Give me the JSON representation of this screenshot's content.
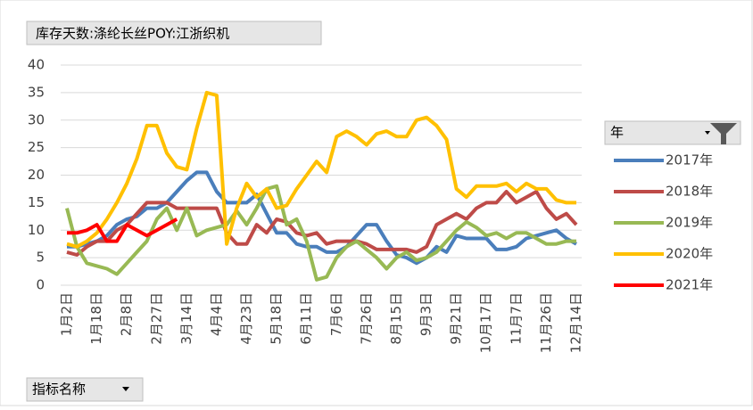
{
  "chart_data": {
    "type": "line",
    "title": "库存天数:涤纶长丝POY:江浙织机",
    "categories": [
      "1月2日",
      null,
      null,
      "1月18日",
      null,
      null,
      "2月8日",
      null,
      null,
      "2月27日",
      null,
      null,
      "3月14日",
      null,
      null,
      "4月4日",
      null,
      null,
      "4月23日",
      null,
      null,
      "5月18日",
      null,
      null,
      "6月11日",
      null,
      null,
      "7月6日",
      null,
      null,
      "7月26日",
      null,
      null,
      "8月15日",
      null,
      null,
      "9月3日",
      null,
      null,
      "9月21日",
      null,
      null,
      "10月17日",
      null,
      null,
      "11月7日",
      null,
      null,
      "11月26日",
      null,
      null,
      "12月14日"
    ],
    "series": [
      {
        "name": "2017年",
        "color": "#4a7ebb",
        "values": [
          7,
          7,
          7.5,
          8,
          9,
          11,
          12,
          12.5,
          14,
          14,
          15,
          17,
          19,
          20.5,
          20.5,
          17,
          15,
          15,
          15,
          16.5,
          13,
          9.5,
          9.5,
          7.5,
          7,
          7,
          6,
          6,
          7,
          9,
          11,
          11,
          8,
          5.5,
          5,
          4,
          5,
          7,
          6,
          9,
          8.5,
          8.5,
          8.5,
          6.5,
          6.5,
          7,
          8.5,
          9,
          9.5,
          10,
          8.5,
          7.5
        ]
      },
      {
        "name": "2018年",
        "color": "#be4b48",
        "values": [
          6,
          5.5,
          7,
          8,
          8,
          10,
          11,
          13,
          15,
          15,
          15,
          14,
          14,
          14,
          14,
          14,
          9.5,
          7.5,
          7.5,
          11,
          9.5,
          12,
          11.5,
          9.5,
          9,
          9.5,
          7.5,
          8,
          8,
          8,
          7.5,
          6.5,
          6.5,
          6.5,
          6.5,
          6,
          7,
          11,
          12,
          13,
          12,
          14,
          15,
          15,
          17,
          15,
          16,
          17,
          14,
          12,
          13,
          11
        ]
      },
      {
        "name": "2019年",
        "color": "#98b954",
        "values": [
          14,
          7,
          4,
          3.5,
          3,
          2,
          4,
          6,
          8,
          12,
          14,
          10,
          14,
          9,
          10,
          10.5,
          11,
          13.5,
          11,
          14,
          17.5,
          18,
          11,
          12,
          8,
          1,
          1.5,
          5,
          7,
          8,
          6.5,
          5,
          3,
          5,
          6,
          4.5,
          5,
          6,
          8,
          10,
          11.5,
          10.5,
          9,
          9.5,
          8.5,
          9.5,
          9.5,
          8.5,
          7.5,
          7.5,
          8,
          8
        ]
      },
      {
        "name": "2020年",
        "color": "#ffc000",
        "values": [
          7.5,
          7,
          8,
          9.5,
          12,
          15,
          18.5,
          23,
          29,
          29,
          24,
          21.5,
          21,
          28.5,
          35,
          34.5,
          7.5,
          14,
          18.5,
          16,
          17.5,
          14,
          14.5,
          17.5,
          20,
          22.5,
          20.5,
          27,
          28,
          27,
          25.5,
          27.5,
          28,
          27,
          27,
          30,
          30.5,
          29,
          26.5,
          17.5,
          16,
          18,
          18,
          18,
          18.5,
          17,
          18.5,
          17.5,
          17.5,
          15.5,
          15,
          15
        ]
      },
      {
        "name": "2021年",
        "color": "#ff0000",
        "values": [
          9.5,
          9.5,
          10,
          11,
          8,
          8,
          11,
          10,
          9,
          10,
          11,
          12,
          null,
          null,
          null,
          null,
          null,
          null,
          null,
          null,
          null,
          null,
          null,
          null,
          null,
          null,
          null,
          null,
          null,
          null,
          null,
          null,
          null,
          null,
          null,
          null,
          null,
          null,
          null,
          null,
          null,
          null,
          null,
          null,
          null,
          null,
          null,
          null,
          null,
          null,
          null,
          null
        ]
      }
    ],
    "ylim": [
      0,
      40
    ],
    "yticks": [
      0,
      5,
      10,
      15,
      20,
      25,
      30,
      35,
      40
    ],
    "grid": true,
    "legend_title": "年",
    "field_button": "指标名称"
  }
}
